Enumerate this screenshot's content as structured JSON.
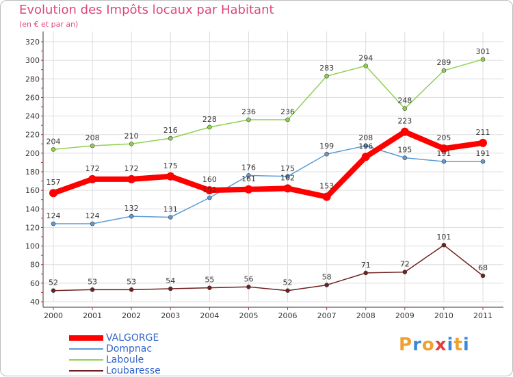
{
  "title": "Evolution des Impôts locaux par Habitant",
  "subtitle": "(en € et par an)",
  "brand": {
    "letters": [
      "P",
      "r",
      "o",
      "x",
      "i",
      "t",
      "i"
    ],
    "colors": [
      "#f0a030",
      "#3a8ad8",
      "#f0a030",
      "#e04040",
      "#3a8ad8",
      "#f0a030",
      "#3a8ad8"
    ]
  },
  "colors": {
    "VALGORGE": "#ff0000",
    "Dompnac": "#5b9bd5",
    "Laboule": "#8fd14f",
    "Loubaresse": "#6e1f1f",
    "grid": "#dddddd",
    "axis": "#333333"
  },
  "chart_data": {
    "type": "line",
    "title": "Evolution des Impôts locaux par Habitant",
    "subtitle": "(en € et par an)",
    "xlabel": "",
    "ylabel": "",
    "ylim": [
      40,
      320
    ],
    "yticks": [
      40,
      60,
      80,
      100,
      120,
      140,
      160,
      180,
      200,
      220,
      240,
      260,
      280,
      300,
      320
    ],
    "grid": true,
    "legend_position": "bottom-left",
    "categories": [
      "2000",
      "2001",
      "2002",
      "2003",
      "2004",
      "2005",
      "2006",
      "2007",
      "2008",
      "2009",
      "2010",
      "2011"
    ],
    "series": [
      {
        "name": "VALGORGE",
        "values": [
          157,
          172,
          172,
          175,
          160,
          161,
          162,
          153,
          196,
          223,
          205,
          211
        ]
      },
      {
        "name": "Dompnac",
        "values": [
          124,
          124,
          132,
          131,
          152,
          176,
          175,
          199,
          208,
          195,
          191,
          191
        ]
      },
      {
        "name": "Laboule",
        "values": [
          204,
          208,
          210,
          216,
          228,
          236,
          236,
          283,
          294,
          248,
          289,
          301
        ]
      },
      {
        "name": "Loubaresse",
        "values": [
          52,
          53,
          53,
          54,
          55,
          56,
          52,
          58,
          71,
          72,
          101,
          68
        ]
      }
    ]
  }
}
